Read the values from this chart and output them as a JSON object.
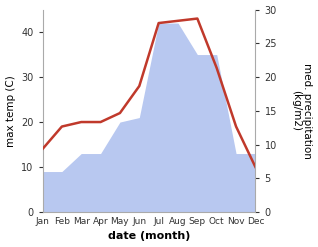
{
  "months": [
    "Jan",
    "Feb",
    "Mar",
    "Apr",
    "May",
    "Jun",
    "Jul",
    "Aug",
    "Sep",
    "Oct",
    "Nov",
    "Dec"
  ],
  "max_temp": [
    14,
    19,
    20,
    20,
    22,
    28,
    42,
    42.5,
    43,
    32,
    19,
    10
  ],
  "precipitation": [
    9,
    9,
    13,
    13,
    20,
    21,
    42,
    42,
    35,
    35,
    13,
    13
  ],
  "temp_color": "#c0392b",
  "precip_fill_color": "#b8c8f0",
  "title": "",
  "xlabel": "date (month)",
  "ylabel_left": "max temp (C)",
  "ylabel_right": "med. precipitation\n(kg/m2)",
  "ylim_left": [
    0,
    45
  ],
  "ylim_right": [
    0,
    30
  ],
  "yticks_left": [
    0,
    10,
    20,
    30,
    40
  ],
  "yticks_right": [
    0,
    5,
    10,
    15,
    20,
    25,
    30
  ],
  "background_color": "#ffffff",
  "temp_linewidth": 1.8,
  "xlabel_fontsize": 8,
  "ylabel_fontsize": 7.5
}
